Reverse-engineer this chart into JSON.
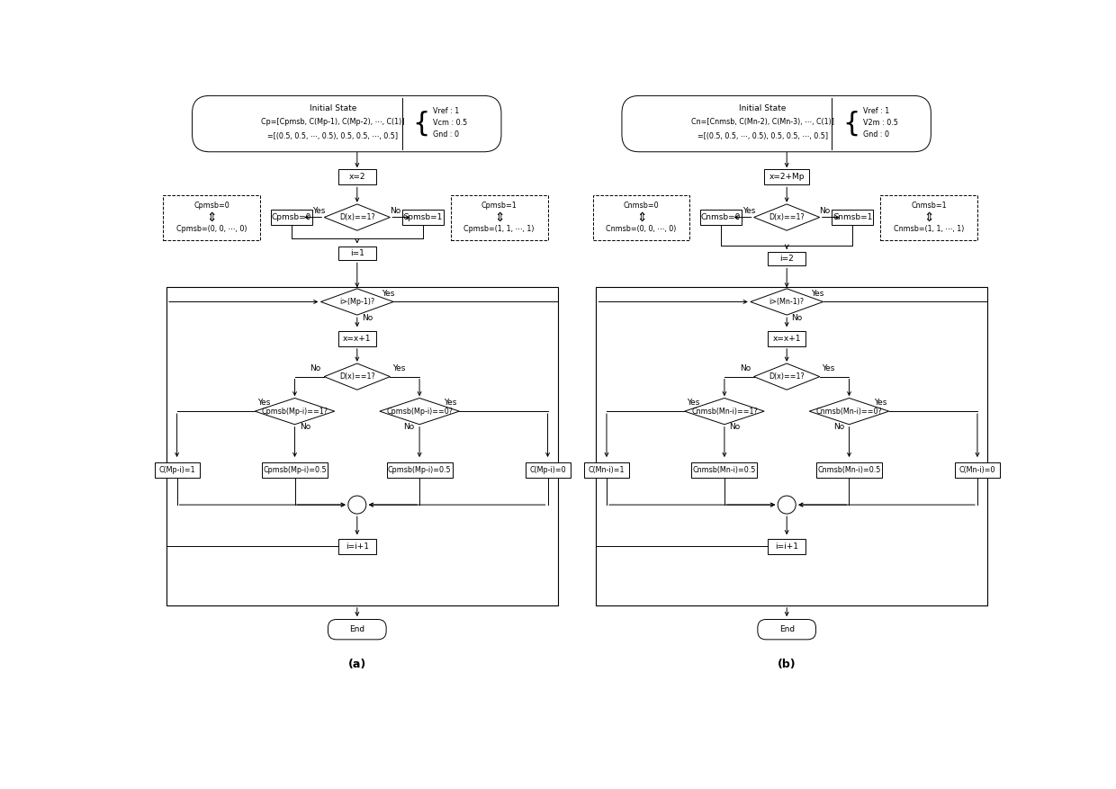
{
  "fig_width": 12.4,
  "fig_height": 8.77,
  "bg_color": "#ffffff",
  "label_a": "(a)",
  "label_b": "(b)",
  "diagram_a": {
    "initial_state_title": "Initial State",
    "initial_state_line1": "Cp=[Cpmsb, C(Mp-1), C(Mp-2), ⋯, C(1)]",
    "initial_state_line2": "=[(0.5, 0.5, ⋯, 0.5), 0.5, 0.5, ⋯, 0.5]",
    "node_x2": "x=2",
    "diamond1": "D(x)==1?",
    "box_cpmsb0": "Cpmsb=0",
    "box_cpmsb1": "Cpmsb=1",
    "dashed_left_t": "Cpmsb=0",
    "dashed_left_b": "Cpmsb=(0, 0, ⋯, 0)",
    "dashed_right_t": "Cpmsb=1",
    "dashed_right_b": "Cpmsb=(1, 1, ⋯, 1)",
    "node_i1": "i=1",
    "diamond2": "i>(Mp-1)?",
    "node_xp1": "x=x+1",
    "diamond3": "D(x)==1?",
    "diamond4a": "Cpmsb(Mp-i)==1?",
    "diamond4b": "Cpmsb(Mp-i)==0?",
    "box_c1": "C(Mp-i)=1",
    "box_c05a": "Cpmsb(Mp-i)=0.5",
    "box_c05b": "Cpmsb(Mp-i)=0.5",
    "box_c0": "C(Mp-i)=0",
    "node_iplus1": "i=i+1",
    "node_end": "End",
    "vref": "Vref : 1",
    "vcm": "Vcm : 0.5",
    "gnd": "Gnd : 0"
  },
  "diagram_b": {
    "initial_state_title": "Initial State",
    "initial_state_line1": "Cn=[Cnmsb, C(Mn-2), C(Mn-3), ⋯, C(1)]",
    "initial_state_line2": "=[(0.5, 0.5, ⋯, 0.5), 0.5, 0.5, ⋯, 0.5]",
    "node_x2mp": "x=2+Mp",
    "diamond1": "D(x)==1?",
    "box_cnmsb0": "Cnmsb=0",
    "box_cnmsb1": "Cnmsb=1",
    "dashed_left_t": "Cnmsb=0",
    "dashed_left_b": "Cnmsb=(0, 0, ⋯, 0)",
    "dashed_right_t": "Cnmsb=1",
    "dashed_right_b": "Cnmsb=(1, 1, ⋯, 1)",
    "node_i2": "i=2",
    "diamond2": "i>(Mn-1)?",
    "node_xp1": "x=x+1",
    "diamond3": "D(x)==1?",
    "diamond4a": "Cnmsb(Mn-i)==1?",
    "diamond4b": "Cnmsb(Mn-i)==0?",
    "box_c1": "C(Mn-i)=1",
    "box_c05a": "Cnmsb(Mn-i)=0.5",
    "box_c05b": "Cnmsb(Mn-i)=0.5",
    "box_c0": "C(Mn-i)=0",
    "node_iplus1": "i=i+1",
    "node_end": "End",
    "vref": "Vref : 1",
    "v2m": "V2m : 0.5",
    "gnd": "Gnd : 0"
  }
}
